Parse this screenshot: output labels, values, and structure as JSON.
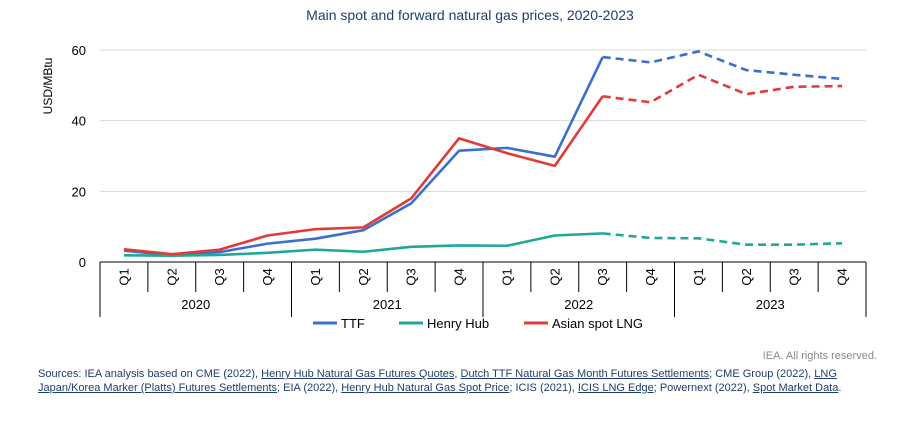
{
  "chart_data": {
    "type": "line",
    "title": "Main spot and forward natural gas prices, 2020-2023",
    "ylabel": "USD/MBtu",
    "xlabel": "",
    "ylim": [
      0,
      60
    ],
    "yticks": [
      0,
      20,
      40,
      60
    ],
    "grid": true,
    "legend_position": "bottom",
    "quarters": [
      "Q1",
      "Q2",
      "Q3",
      "Q4",
      "Q1",
      "Q2",
      "Q3",
      "Q4",
      "Q1",
      "Q2",
      "Q3",
      "Q4",
      "Q1",
      "Q2",
      "Q3",
      "Q4"
    ],
    "years": [
      "2020",
      "2021",
      "2022",
      "2023"
    ],
    "forward_from_index": 10,
    "series": [
      {
        "name": "TTF",
        "color": "#3a6fd0",
        "values": [
          3.2,
          1.9,
          2.8,
          5.2,
          6.6,
          9.0,
          16.6,
          31.5,
          32.3,
          29.8,
          58.0,
          56.5,
          59.6,
          54.3,
          53.0,
          51.8
        ]
      },
      {
        "name": "Henry Hub",
        "color": "#1fa89a",
        "values": [
          1.9,
          1.8,
          2.0,
          2.6,
          3.5,
          2.9,
          4.3,
          4.7,
          4.6,
          7.5,
          8.1,
          6.8,
          6.7,
          4.9,
          4.9,
          5.3
        ]
      },
      {
        "name": "Asian spot LNG",
        "color": "#e03a3a",
        "values": [
          3.6,
          2.2,
          3.5,
          7.5,
          9.3,
          9.8,
          18.0,
          35.0,
          30.8,
          27.2,
          46.9,
          45.2,
          53.0,
          47.5,
          49.6,
          49.8
        ]
      }
    ]
  },
  "footer": {
    "rights": "IEA. All rights reserved.",
    "sources": [
      {
        "text": "Sources: IEA analysis based on CME (2022), ",
        "link": false
      },
      {
        "text": "Henry Hub Natural Gas Futures Quotes",
        "link": true
      },
      {
        "text": ", ",
        "link": false
      },
      {
        "text": "Dutch TTF Natural Gas Month Futures Settlements",
        "link": true
      },
      {
        "text": "; CME Group (2022), ",
        "link": false
      },
      {
        "text": "LNG Japan/Korea Marker (Platts) Futures Settlements",
        "link": true
      },
      {
        "text": "; EIA (2022), ",
        "link": false
      },
      {
        "text": "Henry Hub Natural Gas Spot Price",
        "link": true
      },
      {
        "text": "; ICIS (2021), ",
        "link": false
      },
      {
        "text": "ICIS LNG Edge",
        "link": true
      },
      {
        "text": "; Powernext (2022), ",
        "link": false
      },
      {
        "text": "Spot Market Data",
        "link": true
      },
      {
        "text": ".",
        "link": false
      }
    ]
  }
}
